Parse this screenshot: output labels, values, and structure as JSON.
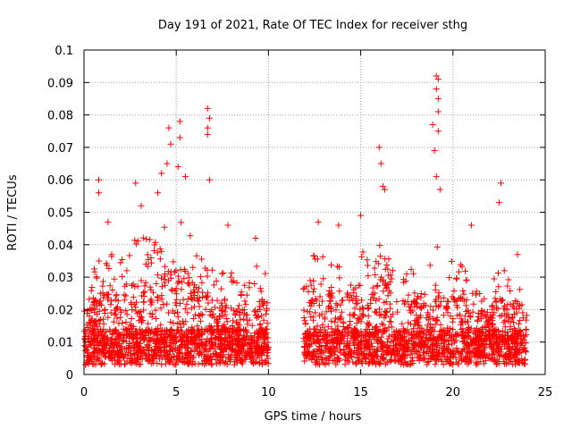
{
  "chart_data": {
    "type": "scatter",
    "title": "Day 191 of 2021, Rate Of TEC Index for receiver sthg",
    "xlabel": "GPS time / hours",
    "ylabel": "ROTI / TECUs",
    "xlim": [
      0,
      25
    ],
    "ylim": [
      0,
      0.1
    ],
    "xticks": [
      0,
      5,
      10,
      15,
      20,
      25
    ],
    "xtick_labels": [
      "0",
      "5",
      "10",
      "15",
      "20",
      "25"
    ],
    "yticks": [
      0,
      0.01,
      0.02,
      0.03,
      0.04,
      0.05,
      0.06,
      0.07,
      0.08,
      0.09,
      0.1
    ],
    "ytick_labels": [
      "0",
      "0.01",
      "0.02",
      "0.03",
      "0.04",
      "0.05",
      "0.06",
      "0.07",
      "0.08",
      "0.09",
      "0.1"
    ],
    "grid": true,
    "marker": "+",
    "color": "#ff0000",
    "data_gap_hours": [
      10.0,
      11.9
    ],
    "series": [
      {
        "name": "ROTI",
        "notable_points": [
          {
            "x": 0.8,
            "y": 0.06
          },
          {
            "x": 0.8,
            "y": 0.056
          },
          {
            "x": 1.3,
            "y": 0.047
          },
          {
            "x": 2.8,
            "y": 0.059
          },
          {
            "x": 3.1,
            "y": 0.052
          },
          {
            "x": 4.0,
            "y": 0.056
          },
          {
            "x": 4.2,
            "y": 0.062
          },
          {
            "x": 4.5,
            "y": 0.065
          },
          {
            "x": 4.6,
            "y": 0.076
          },
          {
            "x": 4.7,
            "y": 0.071
          },
          {
            "x": 5.1,
            "y": 0.064
          },
          {
            "x": 5.2,
            "y": 0.078
          },
          {
            "x": 5.2,
            "y": 0.073
          },
          {
            "x": 5.5,
            "y": 0.061
          },
          {
            "x": 6.7,
            "y": 0.082
          },
          {
            "x": 6.8,
            "y": 0.079
          },
          {
            "x": 6.7,
            "y": 0.076
          },
          {
            "x": 6.7,
            "y": 0.074
          },
          {
            "x": 6.8,
            "y": 0.06
          },
          {
            "x": 7.8,
            "y": 0.046
          },
          {
            "x": 9.3,
            "y": 0.042
          },
          {
            "x": 12.7,
            "y": 0.047
          },
          {
            "x": 13.8,
            "y": 0.046
          },
          {
            "x": 15.0,
            "y": 0.049
          },
          {
            "x": 16.0,
            "y": 0.07
          },
          {
            "x": 16.1,
            "y": 0.065
          },
          {
            "x": 16.2,
            "y": 0.058
          },
          {
            "x": 16.3,
            "y": 0.057
          },
          {
            "x": 18.9,
            "y": 0.077
          },
          {
            "x": 19.0,
            "y": 0.069
          },
          {
            "x": 19.1,
            "y": 0.092
          },
          {
            "x": 19.2,
            "y": 0.091
          },
          {
            "x": 19.1,
            "y": 0.088
          },
          {
            "x": 19.2,
            "y": 0.085
          },
          {
            "x": 19.2,
            "y": 0.081
          },
          {
            "x": 19.2,
            "y": 0.075
          },
          {
            "x": 19.1,
            "y": 0.061
          },
          {
            "x": 19.3,
            "y": 0.057
          },
          {
            "x": 21.0,
            "y": 0.046
          },
          {
            "x": 22.6,
            "y": 0.059
          },
          {
            "x": 22.5,
            "y": 0.053
          },
          {
            "x": 23.5,
            "y": 0.037
          }
        ]
      }
    ]
  }
}
